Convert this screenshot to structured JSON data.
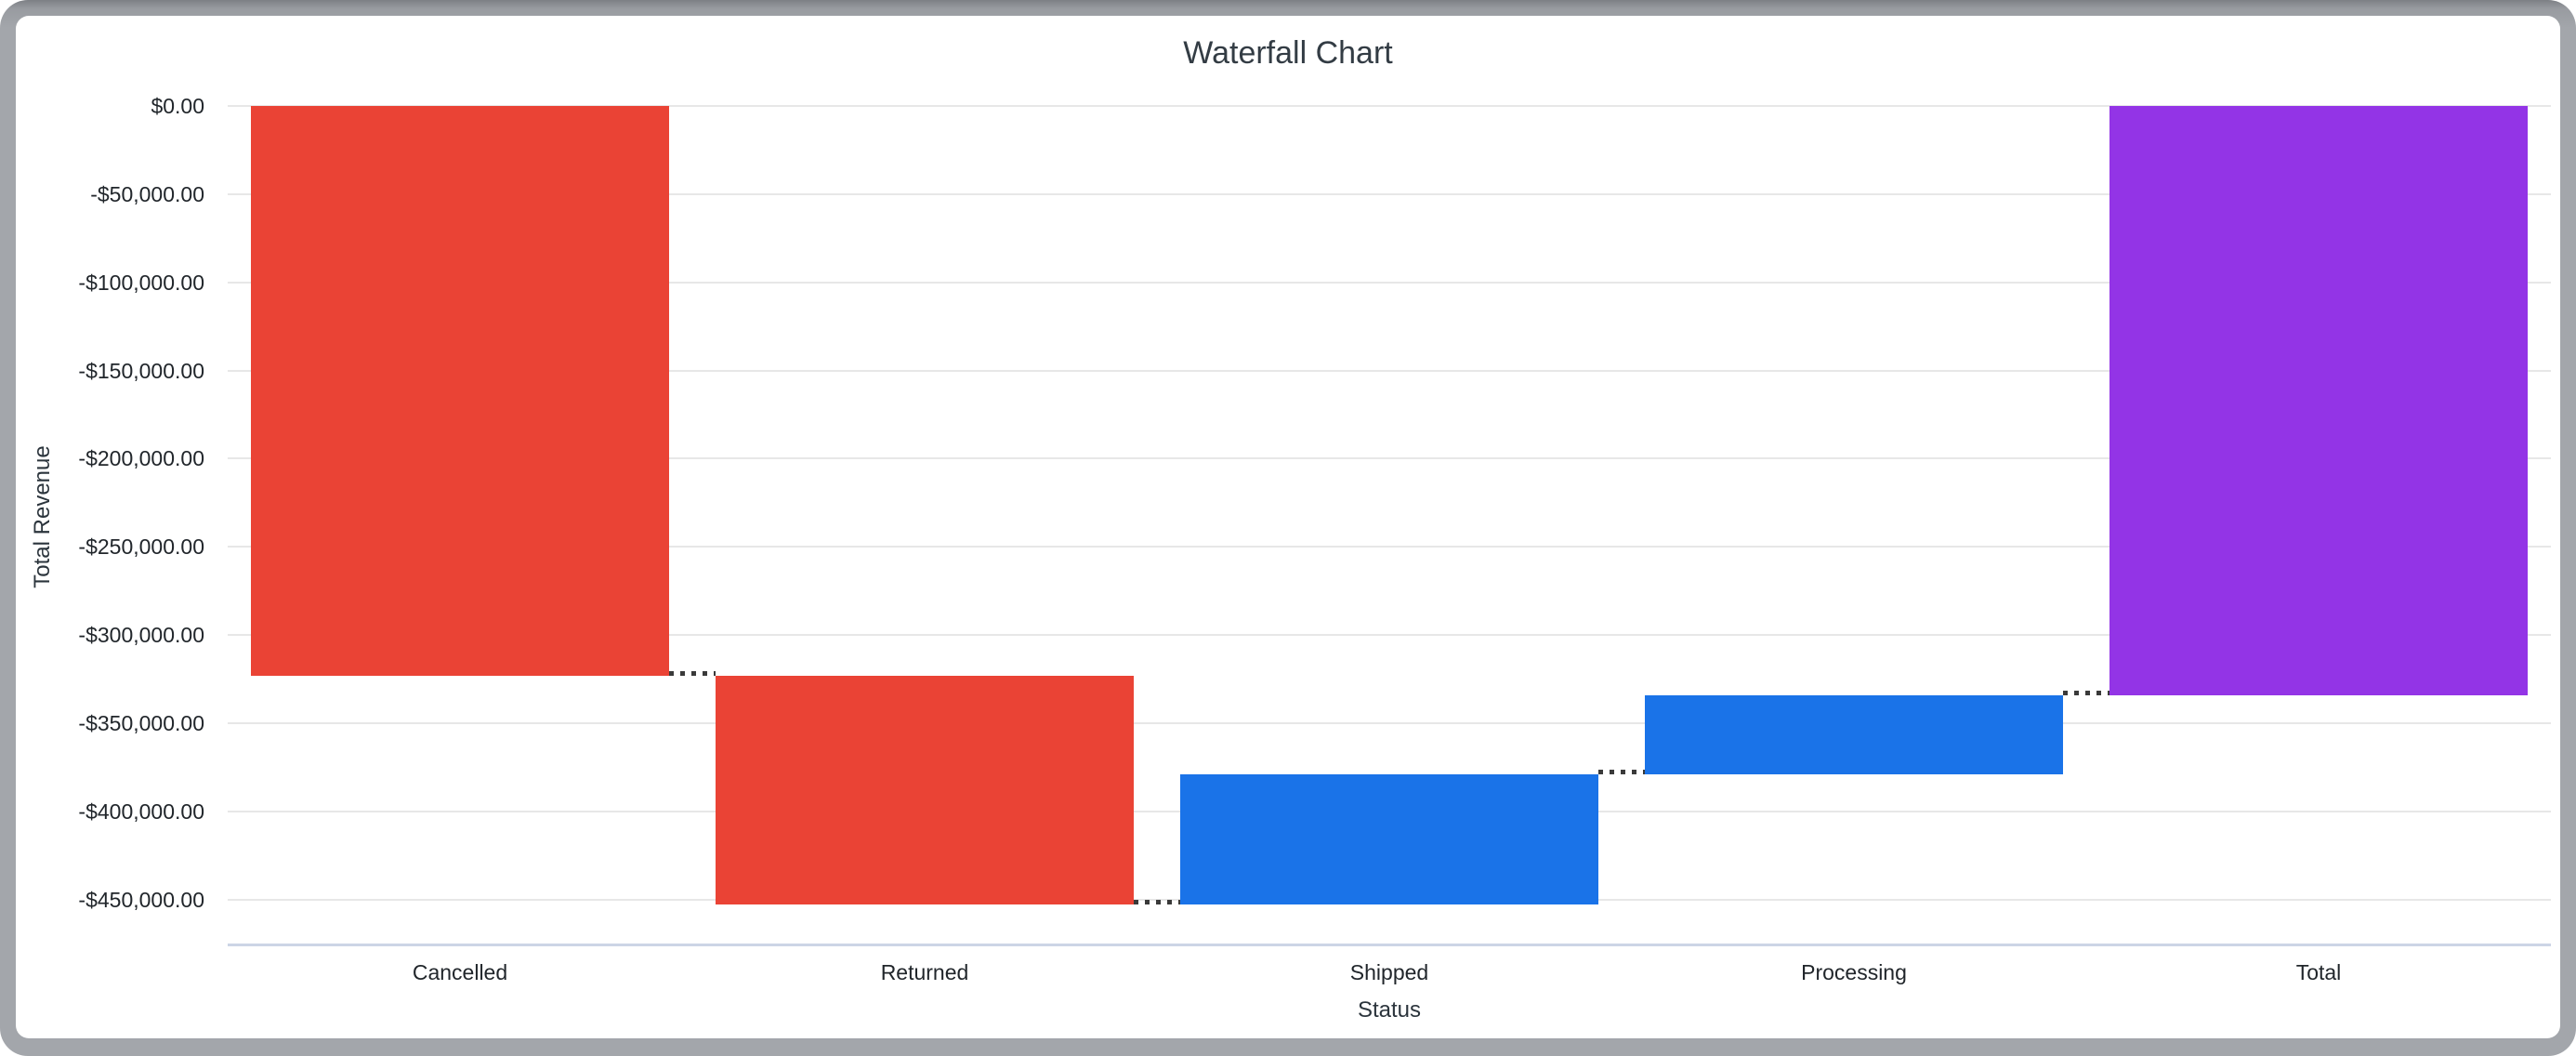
{
  "chart_data": {
    "type": "waterfall",
    "title": "Waterfall Chart",
    "xlabel": "Status",
    "ylabel": "Total Revenue",
    "categories": [
      "Cancelled",
      "Returned",
      "Shipped",
      "Processing",
      "Total"
    ],
    "bars": [
      {
        "label": "Cancelled",
        "start": 0,
        "end": -323400,
        "change": -323400,
        "role": "decrease",
        "color": "#ea4335"
      },
      {
        "label": "Returned",
        "start": -323400,
        "end": -452600,
        "change": -129200,
        "role": "decrease",
        "color": "#ea4335"
      },
      {
        "label": "Shipped",
        "start": -452600,
        "end": -379300,
        "change": 73300,
        "role": "increase",
        "color": "#1a73e8"
      },
      {
        "label": "Processing",
        "start": -379300,
        "end": -334400,
        "change": 44900,
        "role": "increase",
        "color": "#1a73e8"
      },
      {
        "label": "Total",
        "start": 0,
        "end": -334400,
        "change": -334400,
        "role": "total",
        "color": "#9334e6"
      }
    ],
    "y_ticks": [
      {
        "value": 0,
        "label": "$0.00"
      },
      {
        "value": -50000,
        "label": "-$50,000.00"
      },
      {
        "value": -100000,
        "label": "-$100,000.00"
      },
      {
        "value": -150000,
        "label": "-$150,000.00"
      },
      {
        "value": -200000,
        "label": "-$200,000.00"
      },
      {
        "value": -250000,
        "label": "-$250,000.00"
      },
      {
        "value": -300000,
        "label": "-$300,000.00"
      },
      {
        "value": -350000,
        "label": "-$350,000.00"
      },
      {
        "value": -400000,
        "label": "-$400,000.00"
      },
      {
        "value": -450000,
        "label": "-$450,000.00"
      }
    ],
    "ylim": [
      -475000,
      0
    ],
    "grid": true,
    "legend": "none",
    "connector_style": "dotted"
  },
  "colors": {
    "decrease": "#ea4335",
    "increase": "#1a73e8",
    "total": "#9334e6",
    "gridline": "#e7e7e7",
    "baseline": "#ccd5e6",
    "connector": "#3a3a3a",
    "label_text": "#21262b",
    "title_text": "#333c44",
    "frame": "#a3a6ab",
    "card_background": "#ffffff"
  }
}
